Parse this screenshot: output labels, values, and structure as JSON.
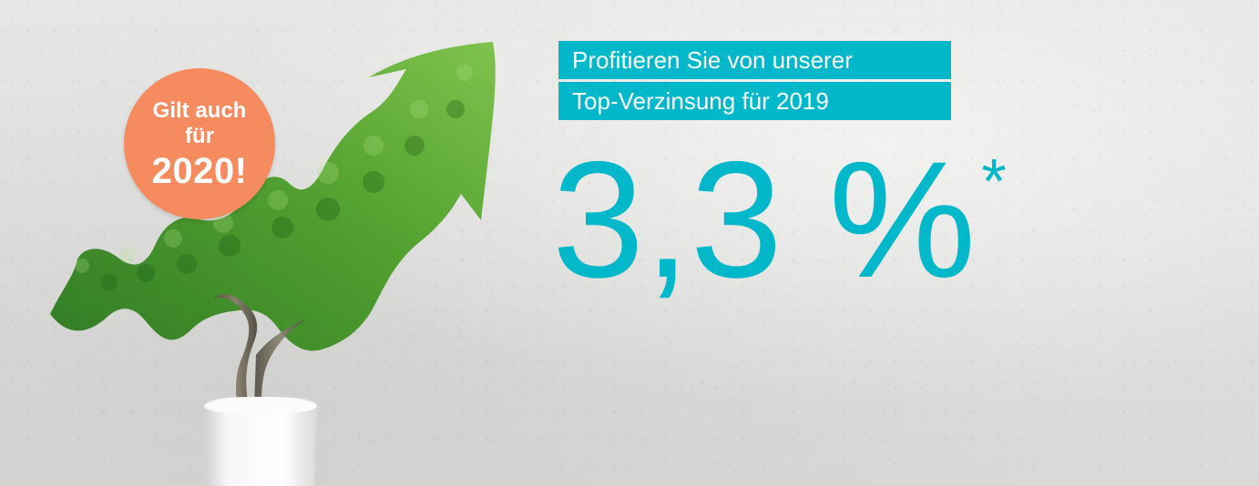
{
  "badge": {
    "line1": "Gilt auch",
    "line2": "für",
    "line3": "2020!"
  },
  "headline": {
    "line1": "Profitieren Sie von unserer",
    "line2": "Top-Verzinsung für 2019"
  },
  "rate": {
    "value": "3,3 %",
    "footnote_marker": "*"
  },
  "colors": {
    "accent": "#00b8c9",
    "badge": "#f58b5e",
    "wall": "#dcdcdb",
    "pot": "#f4f4f4",
    "leaves_dark": "#2f7f23",
    "leaves_light": "#6fbf3a",
    "trunk": "#6a6252"
  }
}
